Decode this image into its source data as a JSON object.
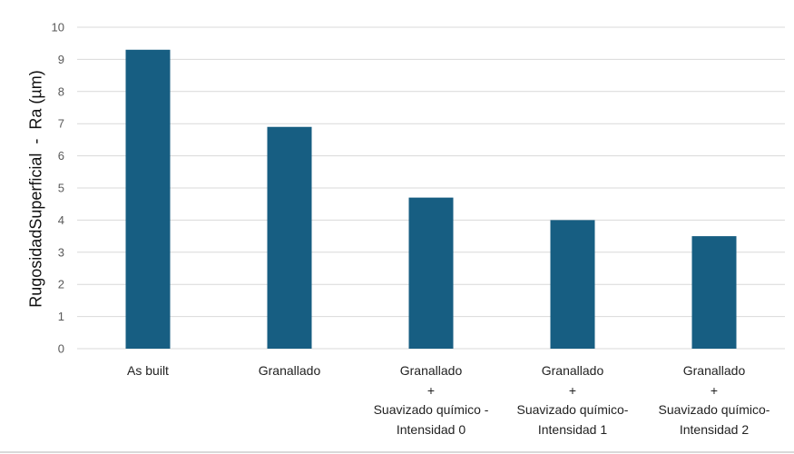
{
  "chart_data": {
    "type": "bar",
    "title": "",
    "xlabel": "",
    "ylabel": "RugosidadSuperficial  -  Ra (µm)",
    "ylim": [
      0,
      10
    ],
    "yticks": [
      0,
      1,
      2,
      3,
      4,
      5,
      6,
      7,
      8,
      9,
      10
    ],
    "grid": true,
    "legend": null,
    "bar_color": "#175e82",
    "categories": [
      "As built",
      "Granallado",
      "Granallado + Suavizado químico - Intensidad 0",
      "Granallado + Suavizado químico- Intensidad 1",
      "Granallado + Suavizado químico- Intensidad 2"
    ],
    "category_lines": [
      [
        "As built"
      ],
      [
        "Granallado"
      ],
      [
        "Granallado",
        "+",
        "Suavizado químico -",
        "Intensidad 0"
      ],
      [
        "Granallado",
        "+",
        "Suavizado químico-",
        "Intensidad 1"
      ],
      [
        "Granallado",
        "+",
        "Suavizado químico-",
        "Intensidad 2"
      ]
    ],
    "values": [
      9.3,
      6.9,
      4.7,
      4.0,
      3.5
    ]
  }
}
